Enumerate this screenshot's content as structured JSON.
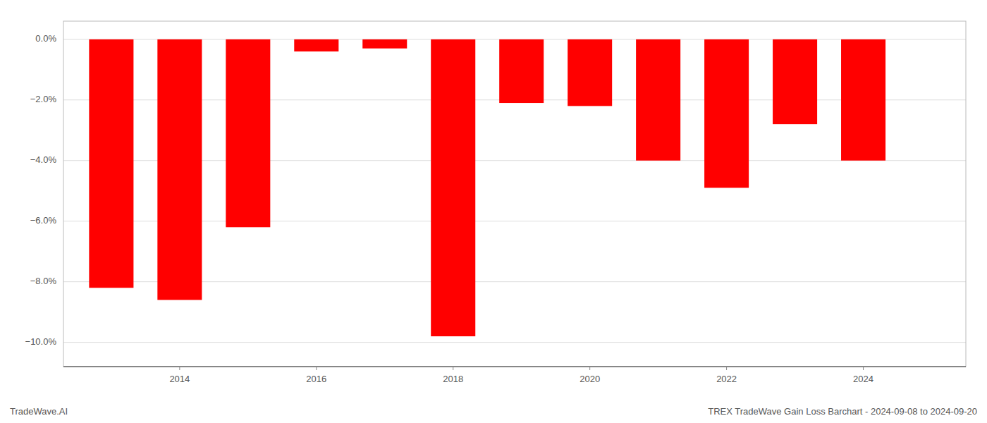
{
  "chart_data": {
    "type": "bar",
    "title": "TREX TradeWave Gain Loss Barchart - 2024-09-08 to 2024-09-20",
    "annotations": [
      "TradeWave.AI"
    ],
    "x": [
      2013,
      2014,
      2015,
      2016,
      2017,
      2018,
      2019,
      2020,
      2021,
      2022,
      2023,
      2024
    ],
    "values": [
      -0.082,
      -0.086,
      -0.062,
      -0.004,
      -0.003,
      -0.098,
      -0.021,
      -0.022,
      -0.04,
      -0.049,
      -0.028,
      -0.04
    ],
    "color": "#ff0000",
    "xlim": [
      2012.3,
      2025.5
    ],
    "xticks": [
      2014,
      2016,
      2018,
      2020,
      2022,
      2024
    ],
    "ylim": [
      -0.108,
      0.006
    ],
    "yticks": [
      {
        "value": 0.0,
        "label": "0.0%"
      },
      {
        "value": -0.02,
        "label": "−2.0%"
      },
      {
        "value": -0.04,
        "label": "−4.0%"
      },
      {
        "value": -0.06,
        "label": "−6.0%"
      },
      {
        "value": -0.08,
        "label": "−8.0%"
      },
      {
        "value": -0.1,
        "label": "−10.0%"
      }
    ],
    "grid": true
  }
}
